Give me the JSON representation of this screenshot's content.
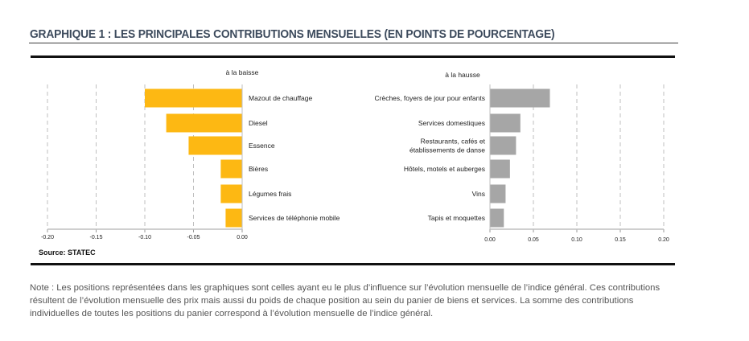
{
  "header": {
    "title": "GRAPHIQUE 1 : LES PRINCIPALES CONTRIBUTIONS MENSUELLES (EN POINTS DE POURCENTAGE)"
  },
  "source": "Source: STATEC",
  "note": "Note : Les positions représentées dans les graphiques sont celles ayant eu le plus d’influence sur l’évolution mensuelle de l’indice général. Ces contributions résultent de l’évolution mensuelle des prix mais aussi du poids de chaque position au sein du panier de biens et services. La somme des contributions individuelles de toutes les positions du panier correspond à l’évolution mensuelle de l’indice général.",
  "colors": {
    "decrease": "#FDB813",
    "increase": "#A6A6A6",
    "grid": "#BFBFBF",
    "axis": "#BFBFBF",
    "title": "#3C4A5C"
  },
  "chart_data": [
    {
      "type": "bar",
      "orientation": "horizontal",
      "title": "à la baisse",
      "categories": [
        "Mazout de chauffage",
        "Diesel",
        "Essence",
        "Bières",
        "Légumes frais",
        "Services de téléphonie mobile"
      ],
      "values": [
        -0.1,
        -0.078,
        -0.055,
        -0.022,
        -0.022,
        -0.017
      ],
      "xlim": [
        -0.2,
        0.0
      ],
      "xticks": [
        -0.2,
        -0.15,
        -0.1,
        -0.05,
        0.0
      ],
      "xtick_labels": [
        "-0.20",
        "-0.15",
        "-0.10",
        "-0.05",
        "0.00"
      ],
      "grid": true,
      "label_side": "right",
      "color": "#FDB813"
    },
    {
      "type": "bar",
      "orientation": "horizontal",
      "title": "à la hausse",
      "categories": [
        "Crèches, foyers de jour pour enfants",
        "Services domestiques",
        "Restaurants, cafés et|établissements de danse",
        "Hôtels, motels et auberges",
        "Vins",
        "Tapis et moquettes"
      ],
      "values": [
        0.069,
        0.035,
        0.03,
        0.023,
        0.018,
        0.016
      ],
      "xlim": [
        0.0,
        0.2
      ],
      "xticks": [
        0.0,
        0.05,
        0.1,
        0.15,
        0.2
      ],
      "xtick_labels": [
        "0.00",
        "0.05",
        "0.10",
        "0.15",
        "0.20"
      ],
      "grid": true,
      "label_side": "left",
      "color": "#A6A6A6"
    }
  ]
}
